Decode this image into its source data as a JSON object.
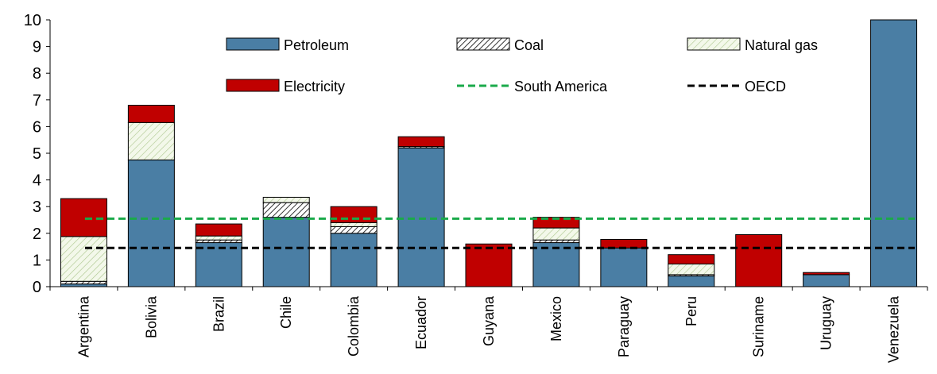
{
  "chart_data": {
    "type": "bar",
    "stacked": true,
    "categories": [
      "Argentina",
      "Bolivia",
      "Brazil",
      "Chile",
      "Colombia",
      "Ecuador",
      "Guyana",
      "Mexico",
      "Paraguay",
      "Peru",
      "Suriname",
      "Uruguay",
      "Venezuela"
    ],
    "series": [
      {
        "name": "Petroleum",
        "color": "#4a7ea4",
        "pattern": "solid",
        "values": [
          0.1,
          4.75,
          1.65,
          2.6,
          2.0,
          5.2,
          0.0,
          1.65,
          1.45,
          0.4,
          0.0,
          0.45,
          10.5
        ]
      },
      {
        "name": "Coal",
        "color": "#ffffff",
        "pattern": "diagonal-dense",
        "values": [
          0.1,
          0.0,
          0.1,
          0.55,
          0.25,
          0.05,
          0.0,
          0.1,
          0.0,
          0.05,
          0.0,
          0.0,
          0.0
        ]
      },
      {
        "name": "Natural gas",
        "color": "#eef4e2",
        "pattern": "diagonal-light",
        "values": [
          1.68,
          1.4,
          0.15,
          0.2,
          0.15,
          0.0,
          0.0,
          0.45,
          0.0,
          0.4,
          0.0,
          0.0,
          0.0
        ]
      },
      {
        "name": "Electricity",
        "color": "#c00000",
        "pattern": "solid",
        "values": [
          1.42,
          0.65,
          0.45,
          0.0,
          0.6,
          0.37,
          1.6,
          0.4,
          0.32,
          0.35,
          1.95,
          0.08,
          0.0
        ]
      }
    ],
    "reference_lines": [
      {
        "name": "South America",
        "value": 2.55,
        "color": "#1aaa4a",
        "style": "dashed"
      },
      {
        "name": "OECD",
        "value": 1.45,
        "color": "#000000",
        "style": "dashed"
      }
    ],
    "ylim": [
      0,
      10
    ],
    "yticks": [
      "0",
      "1",
      "2",
      "3",
      "4",
      "5",
      "6",
      "7",
      "8",
      "9",
      "10"
    ],
    "grid": false,
    "legend_position": "top, inside plot area",
    "title": "",
    "xlabel": "",
    "ylabel": ""
  }
}
